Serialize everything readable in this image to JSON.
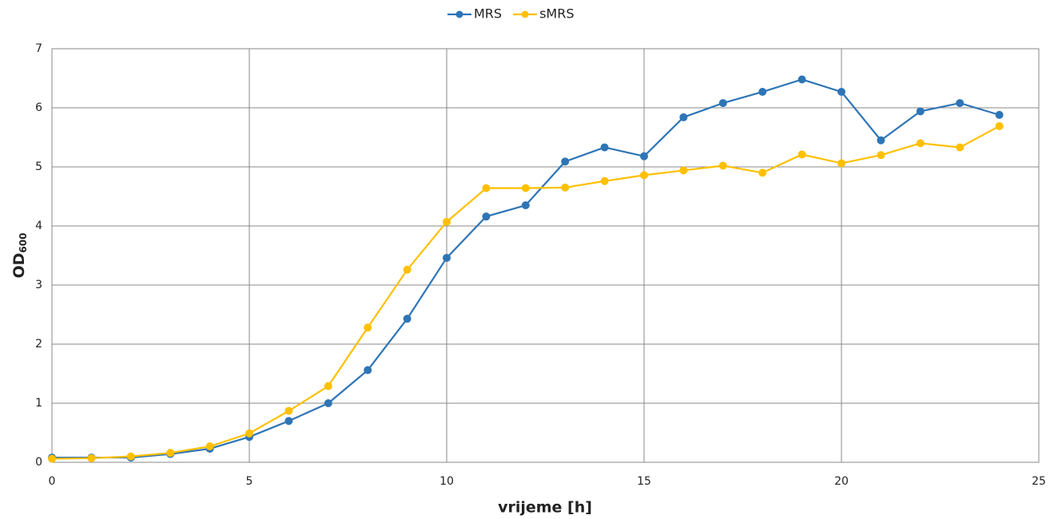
{
  "chart_data": {
    "type": "line",
    "x_label": "vrijeme [h]",
    "y_label": "OD",
    "y_label_sub": "600",
    "x": [
      0,
      1,
      2,
      3,
      4,
      5,
      6,
      7,
      8,
      9,
      10,
      11,
      12,
      13,
      14,
      15,
      16,
      17,
      18,
      19,
      20,
      21,
      22,
      23,
      24
    ],
    "series": [
      {
        "name": "MRS",
        "color": "#2e75b6",
        "values": [
          0.08,
          0.08,
          0.08,
          0.14,
          0.23,
          0.43,
          0.7,
          1.0,
          1.56,
          2.43,
          3.46,
          4.16,
          4.35,
          5.09,
          5.33,
          5.18,
          5.84,
          6.08,
          6.27,
          6.48,
          6.27,
          5.45,
          5.94,
          6.08,
          5.88
        ]
      },
      {
        "name": "sMRS",
        "color": "#ffc000",
        "values": [
          0.06,
          0.07,
          0.1,
          0.16,
          0.27,
          0.49,
          0.87,
          1.29,
          2.28,
          3.26,
          4.07,
          4.64,
          4.64,
          4.65,
          4.76,
          4.86,
          4.94,
          5.02,
          4.9,
          5.21,
          5.06,
          5.2,
          5.4,
          5.33,
          5.69
        ]
      }
    ],
    "xlim": [
      0,
      25
    ],
    "xticks": [
      0,
      5,
      10,
      15,
      20,
      25
    ],
    "ylim": [
      0,
      7
    ],
    "yticks": [
      0,
      1,
      2,
      3,
      4,
      5,
      6,
      7
    ],
    "grid": true,
    "legend": "top"
  }
}
